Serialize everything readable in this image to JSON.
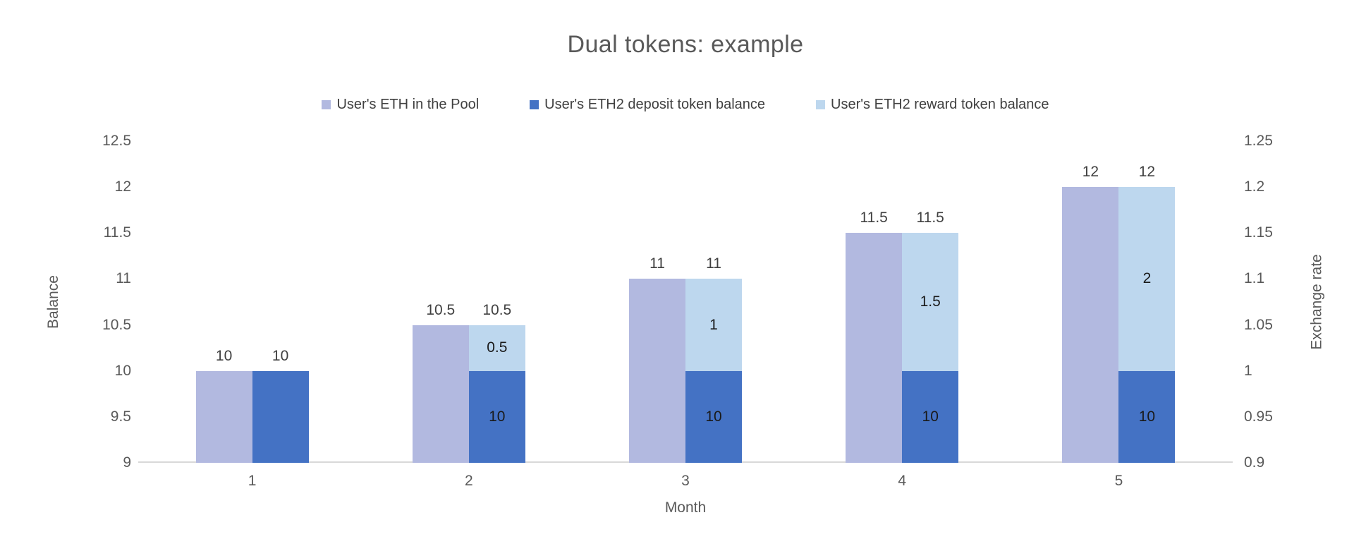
{
  "chart_data": {
    "type": "bar",
    "title": "Dual tokens: example",
    "xlabel": "Month",
    "ylabel_left": "Balance",
    "ylabel_right": "Exchange rate",
    "categories": [
      "1",
      "2",
      "3",
      "4",
      "5"
    ],
    "left_axis": {
      "min": 9,
      "max": 12.5,
      "ticks": [
        "12.5",
        "12",
        "11.5",
        "11",
        "10.5",
        "10",
        "9.5",
        "9"
      ]
    },
    "right_axis": {
      "min": 0.9,
      "max": 1.25,
      "ticks": [
        "1.25",
        "1.2",
        "1.15",
        "1.1",
        "1.05",
        "1",
        "0.95",
        "0.9"
      ]
    },
    "grid": false,
    "legend_position": "top",
    "series": [
      {
        "name": "User's ETH in the Pool",
        "color": "#b2b9e0",
        "values": [
          10,
          10.5,
          11,
          11.5,
          12
        ],
        "data_labels": [
          "10",
          "10.5",
          "11",
          "11.5",
          "12"
        ]
      },
      {
        "name": "User's ETH2 deposit token balance",
        "color": "#4472c4",
        "values": [
          10,
          10,
          10,
          10,
          10
        ],
        "segment_labels": [
          "",
          "10",
          "10",
          "10",
          "10"
        ]
      },
      {
        "name": "User's ETH2 reward token balance",
        "color": "#bdd7ee",
        "values": [
          0,
          0.5,
          1,
          1.5,
          2
        ],
        "segment_labels": [
          "",
          "0.5",
          "1",
          "1.5",
          "2"
        ],
        "stack_total_labels": [
          "10",
          "10.5",
          "11",
          "11.5",
          "12"
        ]
      }
    ],
    "axis_color": "#d9d9d9"
  }
}
